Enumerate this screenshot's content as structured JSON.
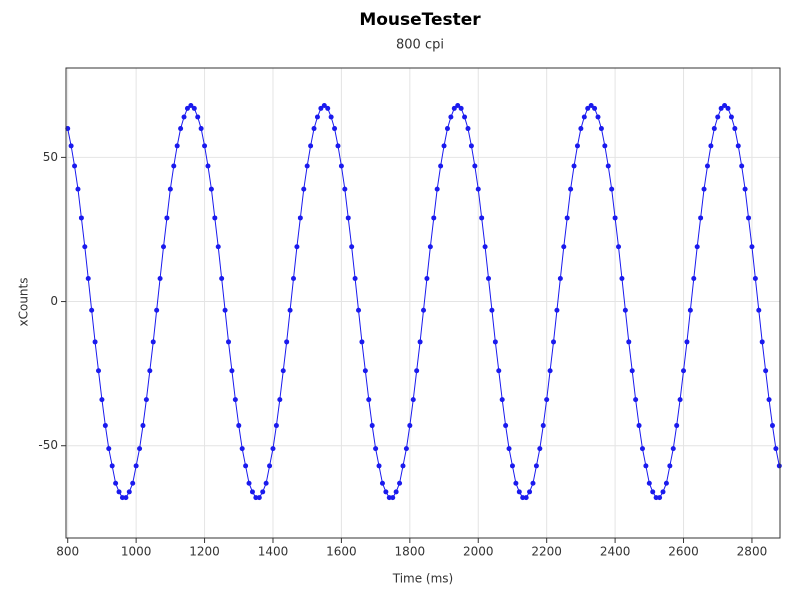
{
  "chart_data": {
    "type": "scatter",
    "title": "MouseTester",
    "subtitle": "800 cpi",
    "xlabel": "Time (ms)",
    "ylabel": "xCounts",
    "color": "#1a1aee",
    "line": true,
    "grid": true,
    "xlim": [
      795,
      2882
    ],
    "ylim": [
      -82,
      81
    ],
    "xticks": [
      800,
      1000,
      1200,
      1400,
      1600,
      1800,
      2000,
      2200,
      2400,
      2600,
      2800
    ],
    "yticks": [
      -50,
      0,
      50
    ],
    "x": [
      800,
      810,
      820,
      830,
      840,
      850,
      860,
      870,
      880,
      890,
      900,
      910,
      920,
      930,
      940,
      950,
      960,
      970,
      980,
      990,
      1000,
      1010,
      1020,
      1030,
      1040,
      1050,
      1060,
      1070,
      1080,
      1090,
      1100,
      1110,
      1120,
      1130,
      1140,
      1150,
      1160,
      1170,
      1180,
      1190,
      1200,
      1210,
      1220,
      1230,
      1240,
      1250,
      1260,
      1270,
      1280,
      1290,
      1300,
      1310,
      1320,
      1330,
      1340,
      1350,
      1360,
      1370,
      1380,
      1390,
      1400,
      1410,
      1420,
      1430,
      1440,
      1450,
      1460,
      1470,
      1480,
      1490,
      1500,
      1510,
      1520,
      1530,
      1540,
      1550,
      1560,
      1570,
      1580,
      1590,
      1600,
      1610,
      1620,
      1630,
      1640,
      1650,
      1660,
      1670,
      1680,
      1690,
      1700,
      1710,
      1720,
      1730,
      1740,
      1750,
      1760,
      1770,
      1780,
      1790,
      1800,
      1810,
      1820,
      1830,
      1840,
      1850,
      1860,
      1870,
      1880,
      1890,
      1900,
      1910,
      1920,
      1930,
      1940,
      1950,
      1960,
      1970,
      1980,
      1990,
      2000,
      2010,
      2020,
      2030,
      2040,
      2050,
      2060,
      2070,
      2080,
      2090,
      2100,
      2110,
      2120,
      2130,
      2140,
      2150,
      2160,
      2170,
      2180,
      2190,
      2200,
      2210,
      2220,
      2230,
      2240,
      2250,
      2260,
      2270,
      2280,
      2290,
      2300,
      2310,
      2320,
      2330,
      2340,
      2350,
      2360,
      2370,
      2380,
      2390,
      2400,
      2410,
      2420,
      2430,
      2440,
      2450,
      2460,
      2470,
      2480,
      2490,
      2500,
      2510,
      2520,
      2530,
      2540,
      2550,
      2560,
      2570,
      2580,
      2590,
      2600,
      2610,
      2620,
      2630,
      2640,
      2650,
      2660,
      2670,
      2680,
      2690,
      2700,
      2710,
      2720,
      2730,
      2740,
      2750,
      2760,
      2770,
      2780,
      2790,
      2800,
      2810,
      2820,
      2830,
      2840,
      2850,
      2860,
      2870,
      2880
    ],
    "values": [
      60,
      54,
      47,
      39,
      29,
      19,
      8,
      -3,
      -14,
      -24,
      -34,
      -43,
      -51,
      -57,
      -63,
      -66,
      -68,
      -68,
      -66,
      -63,
      -57,
      -51,
      -43,
      -34,
      -24,
      -14,
      -3,
      8,
      19,
      29,
      39,
      47,
      54,
      60,
      64,
      67,
      68,
      67,
      64,
      60,
      54,
      47,
      39,
      29,
      19,
      8,
      -3,
      -14,
      -24,
      -34,
      -43,
      -51,
      -57,
      -63,
      -66,
      -68,
      -68,
      -66,
      -63,
      -57,
      -51,
      -43,
      -34,
      -24,
      -14,
      -3,
      8,
      19,
      29,
      39,
      47,
      54,
      60,
      64,
      67,
      68,
      67,
      64,
      60,
      54,
      47,
      39,
      29,
      19,
      8,
      -3,
      -14,
      -24,
      -34,
      -43,
      -51,
      -57,
      -63,
      -66,
      -68,
      -68,
      -66,
      -63,
      -57,
      -51,
      -43,
      -34,
      -24,
      -14,
      -3,
      8,
      19,
      29,
      39,
      47,
      54,
      60,
      64,
      67,
      68,
      67,
      64,
      60,
      54,
      47,
      39,
      29,
      19,
      8,
      -3,
      -14,
      -24,
      -34,
      -43,
      -51,
      -57,
      -63,
      -66,
      -68,
      -68,
      -66,
      -63,
      -57,
      -51,
      -43,
      -34,
      -24,
      -14,
      -3,
      8,
      19,
      29,
      39,
      47,
      54,
      60,
      64,
      67,
      68,
      67,
      64,
      60,
      54,
      47,
      39,
      29,
      19,
      8,
      -3,
      -14,
      -24,
      -34,
      -43,
      -51,
      -57,
      -63,
      -66,
      -68,
      -68,
      -66,
      -63,
      -57,
      -51,
      -43,
      -34,
      -24,
      -14,
      -3,
      8,
      19,
      29,
      39,
      47,
      54,
      60,
      64,
      67,
      68,
      67,
      64,
      60,
      54,
      47,
      39,
      29,
      19,
      8,
      -3,
      -14,
      -24,
      -34,
      -43,
      -51,
      -57
    ]
  }
}
